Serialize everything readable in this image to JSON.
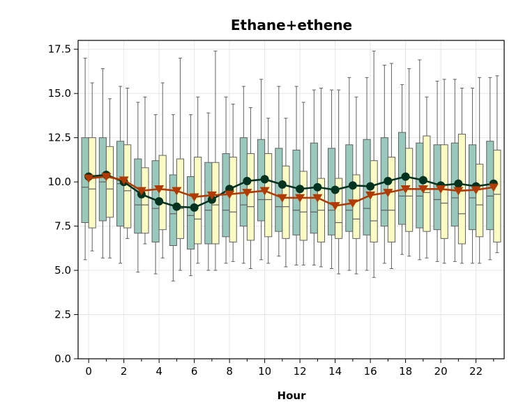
{
  "chart_data": {
    "type": "box",
    "title": "Ethane+ethene",
    "xlabel": "Hour",
    "ylabel": "",
    "ylim": [
      0,
      18
    ],
    "xlim": [
      -0.6,
      23.6
    ],
    "yticks": [
      0.0,
      2.5,
      5.0,
      7.5,
      10.0,
      12.5,
      15.0,
      17.5
    ],
    "ytick_labels": [
      "0.0",
      "2.5",
      "5.0",
      "7.5",
      "10.0",
      "12.5",
      "15.0",
      "17.5"
    ],
    "xticks": [
      0,
      2,
      4,
      6,
      8,
      10,
      12,
      14,
      16,
      18,
      20,
      22
    ],
    "xtick_labels": [
      "0",
      "2",
      "4",
      "6",
      "8",
      "10",
      "12",
      "14",
      "16",
      "18",
      "20",
      "22"
    ],
    "x_minor_ticks": [
      1,
      3,
      5,
      7,
      9,
      11,
      13,
      15,
      17,
      19,
      21,
      23
    ],
    "grid": true,
    "colors": {
      "series_a_box": "#99c9bd",
      "series_b_box": "#fbfbc4",
      "box_edge": "#5f5f5f",
      "series_a_line": "#00331f",
      "series_b_line": "#b03a00"
    },
    "hours": [
      0,
      1,
      2,
      3,
      4,
      5,
      6,
      7,
      8,
      9,
      10,
      11,
      12,
      13,
      14,
      15,
      16,
      17,
      18,
      19,
      20,
      21,
      22,
      23
    ],
    "box_series": [
      {
        "whislo": [
          5.6,
          5.7,
          5.4,
          4.9,
          4.8,
          4.4,
          4.7,
          5.0,
          5.4,
          5.4,
          5.6,
          5.8,
          5.3,
          5.3,
          5.1,
          5.0,
          5.0,
          5.4,
          5.9,
          5.6,
          5.5,
          5.5,
          5.4,
          5.6
        ],
        "q1": [
          7.7,
          7.8,
          7.5,
          7.1,
          6.6,
          6.4,
          6.2,
          6.5,
          6.9,
          7.5,
          7.8,
          7.2,
          7.0,
          7.1,
          7.0,
          7.2,
          7.0,
          7.5,
          7.6,
          7.4,
          7.3,
          7.5,
          7.3,
          7.3
        ],
        "med": [
          9.7,
          10.0,
          9.9,
          8.7,
          8.5,
          8.2,
          8.1,
          8.4,
          8.4,
          8.7,
          9.0,
          8.6,
          8.4,
          8.3,
          8.4,
          8.4,
          8.5,
          8.4,
          9.2,
          9.2,
          9.0,
          9.1,
          9.1,
          9.2
        ],
        "q3": [
          12.5,
          12.5,
          12.3,
          11.3,
          11.2,
          10.4,
          10.3,
          11.1,
          11.6,
          12.5,
          12.4,
          11.9,
          11.8,
          12.2,
          11.9,
          12.1,
          12.4,
          12.5,
          12.8,
          12.2,
          12.1,
          12.2,
          12.1,
          12.3
        ],
        "whishi": [
          17.0,
          16.4,
          15.4,
          14.5,
          13.8,
          13.8,
          13.8,
          13.9,
          14.8,
          15.4,
          15.8,
          15.4,
          15.4,
          15.2,
          15.2,
          15.9,
          15.9,
          16.6,
          15.5,
          16.9,
          15.7,
          15.8,
          15.3,
          15.9
        ]
      },
      {
        "whislo": [
          6.1,
          5.7,
          6.8,
          6.5,
          5.7,
          5.0,
          5.4,
          5.0,
          5.5,
          5.1,
          5.4,
          5.2,
          5.3,
          5.2,
          4.8,
          4.8,
          4.6,
          5.1,
          5.8,
          5.7,
          5.4,
          5.4,
          5.4,
          6.0
        ],
        "q1": [
          7.4,
          8.0,
          7.4,
          7.1,
          7.3,
          6.8,
          6.5,
          6.5,
          6.6,
          6.7,
          6.9,
          6.8,
          6.7,
          6.6,
          6.8,
          6.8,
          6.6,
          6.6,
          7.2,
          7.2,
          6.8,
          6.5,
          6.9,
          6.6
        ],
        "med": [
          9.6,
          9.6,
          9.5,
          8.7,
          9.6,
          8.5,
          7.9,
          8.7,
          8.3,
          8.6,
          9.0,
          8.6,
          8.3,
          8.4,
          7.7,
          7.9,
          7.8,
          8.4,
          9.2,
          9.4,
          8.8,
          8.2,
          8.7,
          9.3
        ],
        "q3": [
          12.5,
          12.0,
          12.1,
          10.8,
          11.5,
          11.3,
          11.4,
          11.1,
          11.4,
          11.6,
          11.6,
          10.9,
          10.6,
          10.2,
          10.2,
          10.4,
          11.2,
          11.4,
          11.9,
          12.6,
          12.1,
          12.7,
          11.0,
          11.8
        ],
        "whishi": [
          15.6,
          14.7,
          15.3,
          14.8,
          15.6,
          17.0,
          14.8,
          17.4,
          14.4,
          14.2,
          13.6,
          13.6,
          14.5,
          15.3,
          15.2,
          14.8,
          17.4,
          16.7,
          16.4,
          14.8,
          15.8,
          15.3,
          15.9,
          16.0
        ]
      }
    ],
    "line_series": [
      {
        "marker": "circle",
        "values": [
          10.3,
          10.4,
          10.0,
          9.3,
          8.9,
          8.6,
          8.55,
          9.0,
          9.6,
          10.05,
          10.15,
          9.85,
          9.6,
          9.7,
          9.55,
          9.8,
          9.75,
          10.05,
          10.3,
          10.1,
          9.8,
          9.9,
          9.75,
          9.9
        ]
      },
      {
        "marker": "triangle-down",
        "values": [
          10.2,
          10.3,
          10.1,
          9.5,
          9.6,
          9.5,
          9.15,
          9.25,
          9.3,
          9.4,
          9.5,
          9.1,
          9.1,
          9.1,
          8.65,
          8.8,
          9.25,
          9.4,
          9.6,
          9.6,
          9.6,
          9.5,
          9.55,
          9.7
        ]
      }
    ]
  }
}
